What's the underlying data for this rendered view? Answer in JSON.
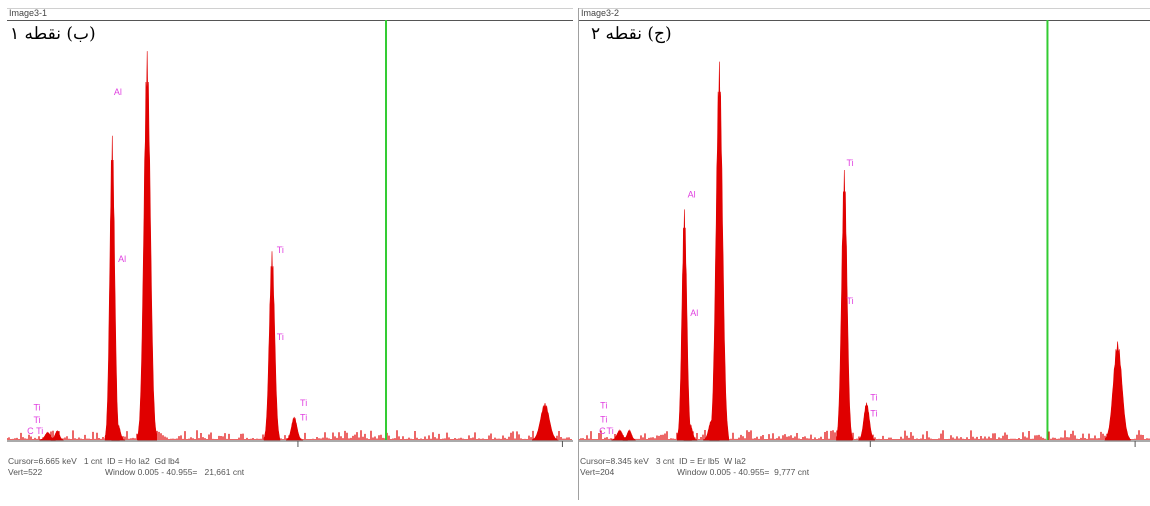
{
  "panels": [
    {
      "window_title": "Image3-1",
      "caption": "(ب) نقطه ۱",
      "status": {
        "cursor": "Cursor=6.665 keV   1 cnt  ID = Ho la2  Gd lb4",
        "vert": "Vert=522",
        "window": "Window 0.005 - 40.955=   21,661 cnt"
      }
    },
    {
      "window_title": "Image3-2",
      "caption": "(ج) نقطه ۲",
      "status": {
        "cursor": "Cursor=8.345 keV   3 cnt  ID = Er lb5  W la2",
        "vert": "Vert=204",
        "window": "Window 0.005 - 40.955=  9,777 cnt"
      }
    }
  ],
  "chart_data": [
    {
      "type": "area",
      "xlabel": "",
      "ylabel": "",
      "xlim": [
        -0.5,
        10.2
      ],
      "ylim": [
        0,
        522
      ],
      "x_ticks": [
        5,
        10
      ],
      "cursor_kev": 6.665,
      "colors": {
        "spectrum": "#e00000",
        "cursor": "#33cc33",
        "label": "#e040e0",
        "axis": "#555555"
      },
      "peaks": [
        {
          "kev": 0.27,
          "height": 10,
          "width": 0.05
        },
        {
          "kev": 0.45,
          "height": 12,
          "width": 0.04
        },
        {
          "kev": 1.49,
          "height": 395,
          "width": 0.045
        },
        {
          "kev": 1.6,
          "height": 20,
          "width": 0.04
        },
        {
          "kev": 2.15,
          "height": 505,
          "width": 0.06
        },
        {
          "kev": 4.51,
          "height": 245,
          "width": 0.05
        },
        {
          "kev": 4.93,
          "height": 30,
          "width": 0.05
        },
        {
          "kev": 9.67,
          "height": 48,
          "width": 0.08
        }
      ],
      "element_labels": [
        {
          "text": "Al",
          "kev": 1.52,
          "y": 448
        },
        {
          "text": "Al",
          "kev": 1.6,
          "y": 231
        },
        {
          "text": "Ti",
          "kev": 4.6,
          "y": 243
        },
        {
          "text": "Ti",
          "kev": 4.6,
          "y": 130
        },
        {
          "text": "Ti",
          "kev": 5.04,
          "y": 44
        },
        {
          "text": "Ti",
          "kev": 5.04,
          "y": 25
        },
        {
          "text": "Ti",
          "kev": 0.0,
          "y": 38
        },
        {
          "text": "Ti",
          "kev": 0.0,
          "y": 22
        },
        {
          "text": "C",
          "kev": -0.12,
          "y": 8
        },
        {
          "text": "Ti",
          "kev": 0.05,
          "y": 8
        }
      ]
    },
    {
      "type": "area",
      "xlabel": "",
      "ylabel": "",
      "xlim": [
        -0.5,
        10.3
      ],
      "ylim": [
        0,
        204
      ],
      "x_ticks": [
        5,
        10
      ],
      "cursor_kev": 8.345,
      "colors": {
        "spectrum": "#e00000",
        "cursor": "#33cc33",
        "label": "#e040e0",
        "axis": "#555555"
      },
      "peaks": [
        {
          "kev": 0.27,
          "height": 5,
          "width": 0.05
        },
        {
          "kev": 0.45,
          "height": 5,
          "width": 0.04
        },
        {
          "kev": 1.49,
          "height": 117,
          "width": 0.045
        },
        {
          "kev": 1.6,
          "height": 8,
          "width": 0.04
        },
        {
          "kev": 2.0,
          "height": 10,
          "width": 0.05
        },
        {
          "kev": 2.15,
          "height": 192,
          "width": 0.06
        },
        {
          "kev": 4.51,
          "height": 137,
          "width": 0.05
        },
        {
          "kev": 4.93,
          "height": 19,
          "width": 0.05
        },
        {
          "kev": 9.67,
          "height": 50,
          "width": 0.08
        }
      ],
      "element_labels": [
        {
          "text": "Al",
          "kev": 1.55,
          "y": 123
        },
        {
          "text": "Al",
          "kev": 1.6,
          "y": 63
        },
        {
          "text": "Ti",
          "kev": 4.55,
          "y": 139
        },
        {
          "text": "Ti",
          "kev": 4.55,
          "y": 69
        },
        {
          "text": "Ti",
          "kev": 5.0,
          "y": 20
        },
        {
          "text": "Ti",
          "kev": 5.0,
          "y": 12
        },
        {
          "text": "Ti",
          "kev": -0.1,
          "y": 16
        },
        {
          "text": "Ti",
          "kev": -0.1,
          "y": 9
        },
        {
          "text": "C",
          "kev": -0.12,
          "y": 3
        },
        {
          "text": "Ti",
          "kev": 0.02,
          "y": 3
        }
      ]
    }
  ]
}
